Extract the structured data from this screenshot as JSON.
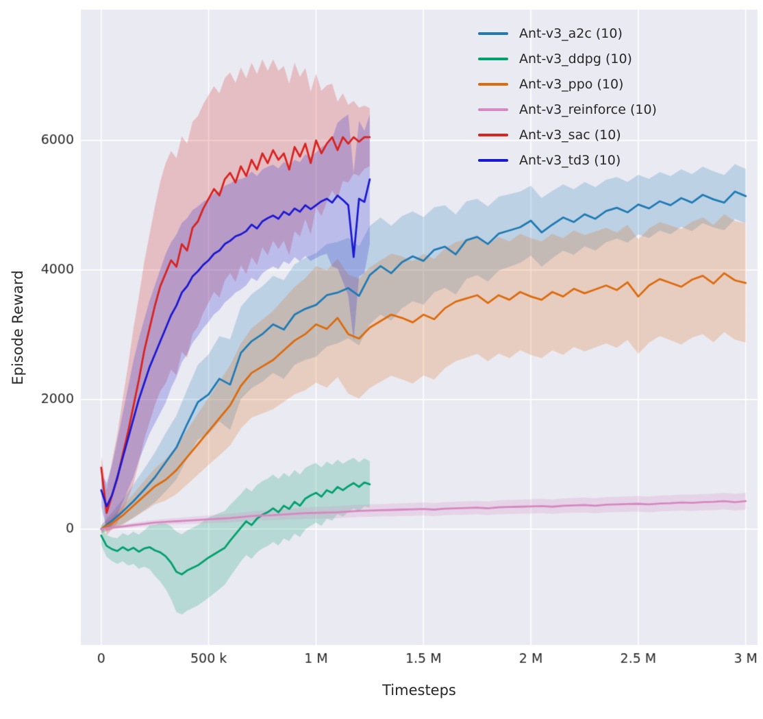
{
  "chart_data": {
    "type": "line",
    "title": "",
    "xlabel": "Timesteps",
    "ylabel": "Episode Reward",
    "background": "#eaeaf2",
    "grid": true,
    "grid_color": "#ffffff",
    "tick_color": "#262626",
    "legend_position": "upper right",
    "xlim": [
      -95000,
      3055000
    ],
    "ylim": [
      -1790,
      8020
    ],
    "x_unit": 1000,
    "xticks": [
      {
        "v": 0,
        "label": "0"
      },
      {
        "v": 500000,
        "label": "500 k"
      },
      {
        "v": 1000000,
        "label": "1 M"
      },
      {
        "v": 1500000,
        "label": "1.5 M"
      },
      {
        "v": 2000000,
        "label": "2 M"
      },
      {
        "v": 2500000,
        "label": "2.5 M"
      },
      {
        "v": 3000000,
        "label": "3 M"
      }
    ],
    "yticks": [
      {
        "v": 0,
        "label": "0"
      },
      {
        "v": 2000,
        "label": "2000"
      },
      {
        "v": 4000,
        "label": "4000"
      },
      {
        "v": 6000,
        "label": "6000"
      }
    ],
    "x_long": [
      0,
      50,
      100,
      150,
      200,
      250,
      300,
      350,
      400,
      450,
      500,
      550,
      600,
      650,
      700,
      750,
      800,
      850,
      900,
      950,
      1000,
      1050,
      1100,
      1150,
      1200,
      1250,
      1300,
      1350,
      1400,
      1450,
      1500,
      1550,
      1600,
      1650,
      1700,
      1750,
      1800,
      1850,
      1900,
      1950,
      2000,
      2050,
      2100,
      2150,
      2200,
      2250,
      2300,
      2350,
      2400,
      2450,
      2500,
      2550,
      2600,
      2650,
      2700,
      2750,
      2800,
      2850,
      2900,
      2950,
      3000
    ],
    "x_short": [
      0,
      25,
      50,
      75,
      100,
      125,
      150,
      175,
      200,
      225,
      250,
      275,
      300,
      325,
      350,
      375,
      400,
      425,
      450,
      475,
      500,
      525,
      550,
      575,
      600,
      625,
      650,
      675,
      700,
      725,
      750,
      775,
      800,
      825,
      850,
      875,
      900,
      925,
      950,
      975,
      1000,
      1025,
      1050,
      1075,
      1100,
      1125,
      1150,
      1175,
      1200,
      1225,
      1250
    ],
    "series": [
      {
        "name": "Ant-v3_a2c (10)",
        "color": "#1f7bb4",
        "x": "x_long",
        "values": [
          0,
          130,
          270,
          430,
          610,
          800,
          1030,
          1260,
          1620,
          1960,
          2080,
          2320,
          2230,
          2720,
          2900,
          3010,
          3160,
          3080,
          3310,
          3400,
          3460,
          3610,
          3650,
          3720,
          3600,
          3920,
          4060,
          3950,
          4120,
          4210,
          4140,
          4310,
          4360,
          4240,
          4460,
          4510,
          4400,
          4560,
          4610,
          4660,
          4760,
          4580,
          4700,
          4810,
          4740,
          4860,
          4790,
          4910,
          4960,
          4890,
          5010,
          4950,
          5060,
          5000,
          5110,
          5040,
          5160,
          5090,
          5040,
          5210,
          5140
        ],
        "band": [
          [
            0,
            60
          ],
          [
            300,
            450
          ],
          [
            600,
            700
          ],
          [
            1000,
            800
          ],
          [
            1300,
            750
          ],
          [
            1700,
            600
          ],
          [
            2100,
            520
          ],
          [
            2500,
            460
          ],
          [
            3000,
            420
          ]
        ]
      },
      {
        "name": "Ant-v3_ddpg (10)",
        "color": "#02a06e",
        "x": "x_short",
        "values": [
          -100,
          -260,
          -310,
          -340,
          -280,
          -330,
          -290,
          -350,
          -300,
          -280,
          -330,
          -360,
          -420,
          -520,
          -660,
          -700,
          -640,
          -600,
          -560,
          -500,
          -440,
          -390,
          -340,
          -290,
          -180,
          -80,
          20,
          120,
          60,
          160,
          220,
          260,
          320,
          260,
          360,
          310,
          420,
          360,
          470,
          520,
          560,
          500,
          600,
          560,
          650,
          600,
          660,
          710,
          650,
          720,
          690
        ],
        "band": [
          [
            0,
            150
          ],
          [
            200,
            280
          ],
          [
            350,
            620
          ],
          [
            500,
            620
          ],
          [
            650,
            520
          ],
          [
            800,
            520
          ],
          [
            1000,
            460
          ],
          [
            1250,
            360
          ]
        ]
      },
      {
        "name": "Ant-v3_ppo (10)",
        "color": "#dd6b0d",
        "x": "x_long",
        "values": [
          0,
          90,
          210,
          360,
          510,
          660,
          760,
          910,
          1110,
          1310,
          1510,
          1710,
          1910,
          2210,
          2410,
          2510,
          2610,
          2760,
          2910,
          3010,
          3160,
          3090,
          3260,
          3010,
          2940,
          3110,
          3210,
          3310,
          3260,
          3190,
          3310,
          3240,
          3410,
          3510,
          3560,
          3610,
          3490,
          3610,
          3540,
          3660,
          3590,
          3540,
          3660,
          3590,
          3710,
          3640,
          3700,
          3760,
          3690,
          3810,
          3590,
          3760,
          3860,
          3800,
          3740,
          3850,
          3910,
          3790,
          3950,
          3840,
          3800
        ],
        "band": [
          [
            0,
            60
          ],
          [
            300,
            320
          ],
          [
            600,
            620
          ],
          [
            1000,
            900
          ],
          [
            1400,
            950
          ],
          [
            1800,
            900
          ],
          [
            2200,
            900
          ],
          [
            2600,
            880
          ],
          [
            3000,
            920
          ]
        ]
      },
      {
        "name": "Ant-v3_reinforce (10)",
        "color": "#d688c0",
        "x": "x_long",
        "values": [
          0,
          20,
          40,
          60,
          80,
          100,
          110,
          120,
          130,
          140,
          150,
          160,
          170,
          185,
          200,
          210,
          215,
          225,
          235,
          245,
          250,
          255,
          260,
          270,
          280,
          285,
          290,
          295,
          300,
          305,
          310,
          300,
          315,
          320,
          325,
          330,
          320,
          335,
          340,
          345,
          350,
          355,
          345,
          360,
          365,
          370,
          360,
          375,
          380,
          385,
          390,
          380,
          395,
          400,
          410,
          405,
          415,
          420,
          430,
          415,
          430
        ],
        "band": [
          [
            0,
            25
          ],
          [
            500,
            60
          ],
          [
            1000,
            90
          ],
          [
            1500,
            100
          ],
          [
            2000,
            110
          ],
          [
            2500,
            120
          ],
          [
            3000,
            130
          ]
        ]
      },
      {
        "name": "Ant-v3_sac (10)",
        "color": "#d8231f",
        "x": "x_short",
        "values": [
          950,
          250,
          520,
          780,
          1150,
          1500,
          1900,
          2300,
          2750,
          3100,
          3450,
          3750,
          3950,
          4150,
          4050,
          4400,
          4300,
          4650,
          4750,
          4950,
          5100,
          5250,
          5150,
          5400,
          5500,
          5350,
          5600,
          5450,
          5700,
          5550,
          5800,
          5650,
          5850,
          5700,
          5800,
          5550,
          5900,
          5750,
          5950,
          5650,
          6000,
          5800,
          5950,
          6050,
          5850,
          6050,
          5950,
          6050,
          5980,
          6050,
          6050
        ],
        "band": [
          [
            0,
            180
          ],
          [
            150,
            1200
          ],
          [
            300,
            1700
          ],
          [
            500,
            1600
          ],
          [
            700,
            1500
          ],
          [
            900,
            1300
          ],
          [
            1050,
            900
          ],
          [
            1150,
            600
          ],
          [
            1250,
            450
          ]
        ]
      },
      {
        "name": "Ant-v3_td3 (10)",
        "color": "#1a1ad1",
        "x": "x_short",
        "values": [
          600,
          350,
          520,
          800,
          1100,
          1400,
          1700,
          2000,
          2250,
          2500,
          2700,
          2900,
          3100,
          3300,
          3450,
          3650,
          3750,
          3900,
          3980,
          4080,
          4150,
          4250,
          4300,
          4400,
          4450,
          4520,
          4550,
          4600,
          4700,
          4640,
          4750,
          4800,
          4840,
          4790,
          4900,
          4850,
          4950,
          4900,
          5000,
          4940,
          5000,
          5060,
          5100,
          5040,
          5150,
          5080,
          5000,
          4200,
          5100,
          5050,
          5400
        ],
        "band": [
          [
            0,
            250
          ],
          [
            150,
            900
          ],
          [
            300,
            1150
          ],
          [
            500,
            950
          ],
          [
            700,
            820
          ],
          [
            900,
            750
          ],
          [
            1050,
            850
          ],
          [
            1150,
            1400
          ],
          [
            1250,
            1000
          ]
        ]
      }
    ]
  }
}
